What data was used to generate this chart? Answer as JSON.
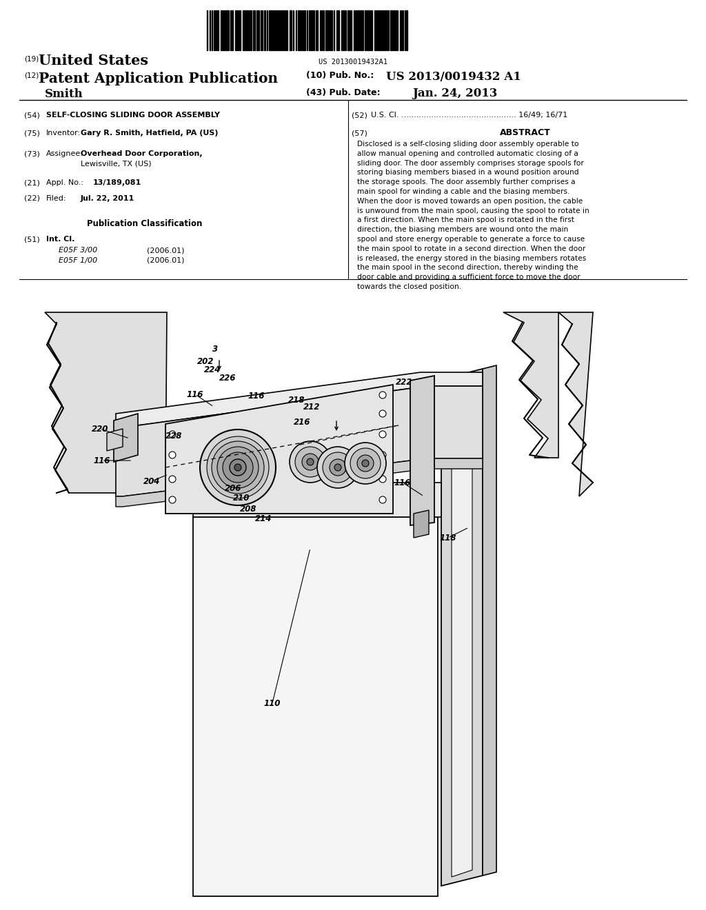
{
  "background_color": "#ffffff",
  "page_width": 10.24,
  "page_height": 13.2,
  "barcode_text": "US 20130019432A1",
  "patent_number": "US 2013/0019432 A1",
  "pub_date": "Jan. 24, 2013",
  "country": "United States",
  "kind": "Patent Application Publication",
  "inventor_name": "Smith",
  "field_19": "(19)",
  "field_12": "(12)",
  "field_10": "(10) Pub. No.:",
  "field_43": "(43) Pub. Date:",
  "field_54_label": "(54)",
  "field_54": "SELF-CLOSING SLIDING DOOR ASSEMBLY",
  "field_52_label": "(52)",
  "field_52": "U.S. Cl. .............................................. 16/49; 16/71",
  "field_57_label": "(57)",
  "field_57_title": "ABSTRACT",
  "abstract_lines": [
    "Disclosed is a self-closing sliding door assembly operable to",
    "allow manual opening and controlled automatic closing of a",
    "sliding door. The door assembly comprises storage spools for",
    "storing biasing members biased in a wound position around",
    "the storage spools. The door assembly further comprises a",
    "main spool for winding a cable and the biasing members.",
    "When the door is moved towards an open position, the cable",
    "is unwound from the main spool, causing the spool to rotate in",
    "a first direction. When the main spool is rotated in the first",
    "direction, the biasing members are wound onto the main",
    "spool and store energy operable to generate a force to cause",
    "the main spool to rotate in a second direction. When the door",
    "is released, the energy stored in the biasing members rotates",
    "the main spool in the second direction, thereby winding the",
    "door cable and providing a sufficient force to move the door",
    "towards the closed position."
  ],
  "field_75_label": "(75)",
  "field_75": "Inventor:",
  "field_75_value": "Gary R. Smith, Hatfield, PA (US)",
  "field_73_label": "(73)",
  "field_73": "Assignee:",
  "field_73_value1": "Overhead Door Corporation,",
  "field_73_value2": "Lewisville, TX (US)",
  "field_21_label": "(21)",
  "field_21": "Appl. No.:",
  "field_21_value": "13/189,081",
  "field_22_label": "(22)",
  "field_22": "Filed:",
  "field_22_value": "Jul. 22, 2011",
  "pub_class_title": "Publication Classification",
  "field_51_label": "(51)",
  "field_51": "Int. Cl.",
  "field_51_class1": "E05F 3/00",
  "field_51_year1": "(2006.01)",
  "field_51_class2": "E05F 1/00",
  "field_51_year2": "(2006.01)"
}
